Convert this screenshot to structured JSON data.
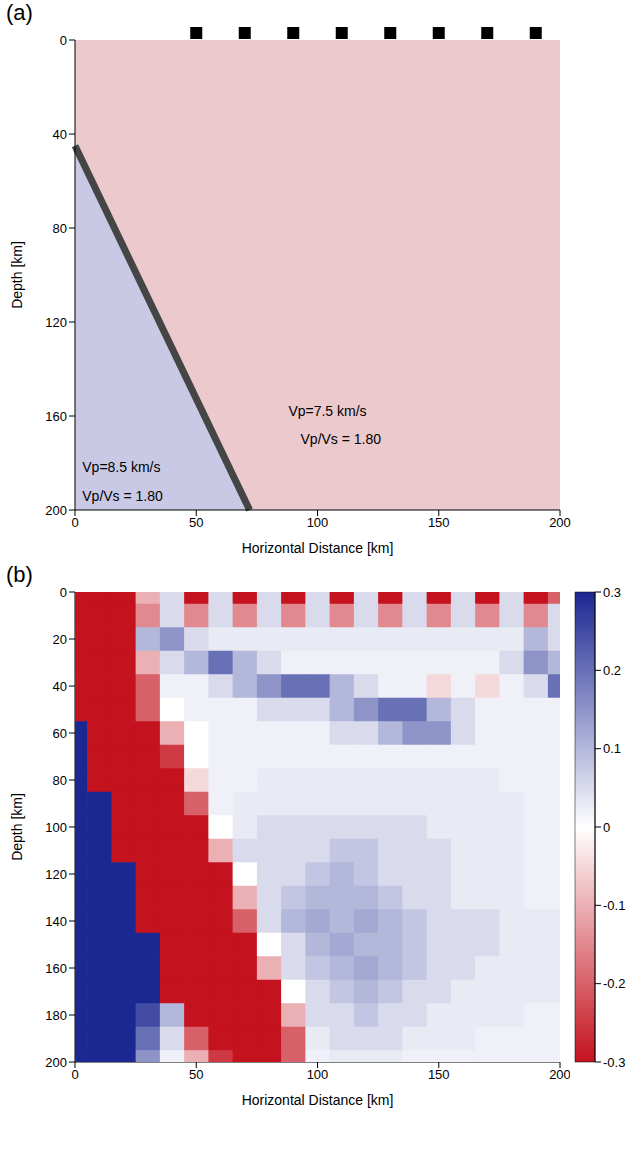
{
  "chart_data": [
    {
      "type": "area",
      "panel_label": "(a)",
      "xlabel": "Horizontal Distance [km]",
      "ylabel": "Depth [km]",
      "xlim": [
        0,
        200
      ],
      "ylim": [
        0,
        200
      ],
      "xticks": [
        0,
        50,
        100,
        150,
        200
      ],
      "yticks": [
        0,
        40,
        80,
        120,
        160,
        200
      ],
      "interface": {
        "x": [
          0,
          72
        ],
        "y": [
          45,
          200
        ]
      },
      "color": "#454545",
      "colors": [
        "#ebc9cd",
        "#c9c9e6"
      ],
      "stations": [
        50,
        70,
        90,
        110,
        130,
        150,
        170,
        190
      ],
      "marker": "square",
      "annotations": [
        "Vp=7.5 km/s",
        "Vp/Vs = 1.80",
        "Vp=8.5 km/s",
        "Vp/Vs = 1.80"
      ]
    },
    {
      "type": "heatmap",
      "panel_label": "(b)",
      "xlabel": "Horizontal Distance [km]",
      "ylabel": "Depth [km]",
      "xlim": [
        0,
        200
      ],
      "ylim": [
        0,
        200
      ],
      "xticks": [
        0,
        50,
        100,
        150,
        200
      ],
      "yticks": [
        0,
        20,
        40,
        60,
        80,
        100,
        120,
        140,
        160,
        180,
        200
      ],
      "colorbar_range": [
        -0.3,
        0.3
      ],
      "colorbar_ticks": [
        0.3,
        0.2,
        0.1,
        0,
        -0.1,
        -0.2,
        -0.3
      ],
      "x": [
        0,
        10,
        20,
        30,
        40,
        50,
        60,
        70,
        80,
        90,
        100,
        110,
        120,
        130,
        140,
        150,
        160,
        170,
        180,
        190,
        200
      ],
      "y": [
        0,
        10,
        20,
        30,
        40,
        50,
        60,
        70,
        80,
        90,
        100,
        110,
        120,
        130,
        140,
        150,
        160,
        170,
        180,
        190,
        200
      ],
      "values": [
        [
          -0.3,
          -0.3,
          -0.3,
          -0.1,
          0.05,
          -0.3,
          0.05,
          -0.3,
          0.05,
          -0.3,
          0.05,
          -0.3,
          0.05,
          -0.3,
          0.05,
          -0.3,
          0.05,
          -0.3,
          0.05,
          -0.3,
          -0.2
        ],
        [
          -0.3,
          -0.3,
          -0.3,
          -0.15,
          0.05,
          -0.15,
          0.05,
          -0.15,
          0.05,
          -0.15,
          0.05,
          -0.15,
          0.05,
          -0.15,
          0.05,
          -0.15,
          0.05,
          -0.15,
          0.05,
          -0.15,
          0.05
        ],
        [
          -0.3,
          -0.3,
          -0.3,
          0.1,
          0.15,
          0.05,
          0.03,
          0.03,
          0.03,
          0.03,
          0.03,
          0.03,
          0.03,
          0.03,
          0.03,
          0.03,
          0.03,
          0.03,
          0.03,
          0.1,
          0.05
        ],
        [
          -0.3,
          -0.3,
          -0.3,
          -0.1,
          0.05,
          0.1,
          0.2,
          0.1,
          0.05,
          0.02,
          0.02,
          0.02,
          0.02,
          0.02,
          0.02,
          0.02,
          0.02,
          0.02,
          0.05,
          0.15,
          0.1
        ],
        [
          -0.3,
          -0.3,
          -0.3,
          -0.2,
          0.02,
          0.02,
          0.05,
          0.1,
          0.15,
          0.2,
          0.2,
          0.1,
          0.05,
          0.02,
          0.02,
          -0.05,
          0.02,
          -0.05,
          0.02,
          0.05,
          0.2
        ],
        [
          -0.3,
          -0.3,
          -0.3,
          -0.2,
          0,
          0.02,
          0.02,
          0.02,
          0.05,
          0.05,
          0.05,
          0.1,
          0.15,
          0.2,
          0.2,
          0.1,
          0.05,
          0.02,
          0.02,
          0.02,
          0.02
        ],
        [
          0.3,
          -0.3,
          -0.3,
          -0.3,
          -0.1,
          0,
          0.02,
          0.02,
          0.02,
          0.02,
          0.02,
          0.05,
          0.05,
          0.1,
          0.15,
          0.15,
          0.05,
          0.02,
          0.02,
          0.02,
          0.02
        ],
        [
          0.3,
          -0.3,
          -0.3,
          -0.3,
          -0.25,
          0,
          0.02,
          0.02,
          0.02,
          0.02,
          0.02,
          0.02,
          0.02,
          0.02,
          0.02,
          0.02,
          0.02,
          0.02,
          0.02,
          0.02,
          0.02
        ],
        [
          0.3,
          -0.3,
          -0.3,
          -0.3,
          -0.3,
          -0.05,
          0.02,
          0.02,
          0.03,
          0.03,
          0.03,
          0.03,
          0.03,
          0.03,
          0.03,
          0.03,
          0.03,
          0.03,
          0.02,
          0.02,
          0.02
        ],
        [
          0.3,
          0.3,
          -0.3,
          -0.3,
          -0.3,
          -0.2,
          0.02,
          0.03,
          0.03,
          0.03,
          0.03,
          0.03,
          0.03,
          0.03,
          0.03,
          0.03,
          0.03,
          0.03,
          0.03,
          0.02,
          0.02
        ],
        [
          0.3,
          0.3,
          -0.3,
          -0.3,
          -0.3,
          -0.3,
          0,
          0.03,
          0.05,
          0.05,
          0.05,
          0.05,
          0.05,
          0.05,
          0.05,
          0.03,
          0.03,
          0.03,
          0.03,
          0.02,
          0.02
        ],
        [
          0.3,
          0.3,
          -0.3,
          -0.3,
          -0.3,
          -0.3,
          -0.1,
          0.05,
          0.05,
          0.05,
          0.05,
          0.08,
          0.08,
          0.05,
          0.05,
          0.05,
          0.03,
          0.03,
          0.03,
          0.02,
          0.02
        ],
        [
          0.3,
          0.3,
          0.3,
          -0.3,
          -0.3,
          -0.3,
          -0.3,
          0,
          0.05,
          0.05,
          0.08,
          0.1,
          0.08,
          0.05,
          0.05,
          0.05,
          0.03,
          0.03,
          0.03,
          0.02,
          0.02
        ],
        [
          0.3,
          0.3,
          0.3,
          -0.3,
          -0.3,
          -0.3,
          -0.3,
          -0.1,
          0.05,
          0.08,
          0.1,
          0.1,
          0.1,
          0.08,
          0.05,
          0.05,
          0.03,
          0.03,
          0.03,
          0.02,
          0.02
        ],
        [
          0.3,
          0.3,
          0.3,
          -0.3,
          -0.3,
          -0.3,
          -0.3,
          -0.2,
          0.05,
          0.1,
          0.12,
          0.1,
          0.12,
          0.1,
          0.08,
          0.05,
          0.05,
          0.05,
          0.03,
          0.03,
          0.03
        ],
        [
          0.3,
          0.3,
          0.3,
          0.3,
          -0.3,
          -0.3,
          -0.3,
          -0.3,
          0,
          0.05,
          0.1,
          0.12,
          0.1,
          0.1,
          0.08,
          0.05,
          0.05,
          0.05,
          0.03,
          0.03,
          0.03
        ],
        [
          0.3,
          0.3,
          0.3,
          0.3,
          -0.3,
          -0.3,
          -0.3,
          -0.3,
          -0.1,
          0.05,
          0.08,
          0.1,
          0.12,
          0.1,
          0.08,
          0.05,
          0.05,
          0.03,
          0.03,
          0.03,
          0.03
        ],
        [
          0.3,
          0.3,
          0.3,
          0.3,
          -0.3,
          -0.3,
          -0.3,
          -0.3,
          -0.3,
          0,
          0.05,
          0.08,
          0.1,
          0.08,
          0.05,
          0.05,
          0.03,
          0.03,
          0.03,
          0.03,
          0.03
        ],
        [
          0.3,
          0.3,
          0.3,
          0.25,
          0.1,
          -0.3,
          -0.3,
          -0.3,
          -0.3,
          -0.1,
          0.05,
          0.05,
          0.08,
          0.05,
          0.05,
          0.03,
          0.03,
          0.03,
          0.03,
          0.02,
          0.02
        ],
        [
          0.3,
          0.3,
          0.3,
          0.2,
          0.05,
          -0.2,
          -0.3,
          -0.3,
          -0.3,
          -0.2,
          0.03,
          0.05,
          0.05,
          0.05,
          0.03,
          0.03,
          0.03,
          0.02,
          0.02,
          0.02,
          0.02
        ],
        [
          0.3,
          0.3,
          0.3,
          0.15,
          0.02,
          -0.1,
          -0.25,
          -0.3,
          -0.3,
          -0.2,
          0.02,
          0.03,
          0.03,
          0.03,
          0.02,
          0.02,
          0.02,
          0.02,
          0.02,
          0.02,
          0.02
        ]
      ]
    }
  ]
}
